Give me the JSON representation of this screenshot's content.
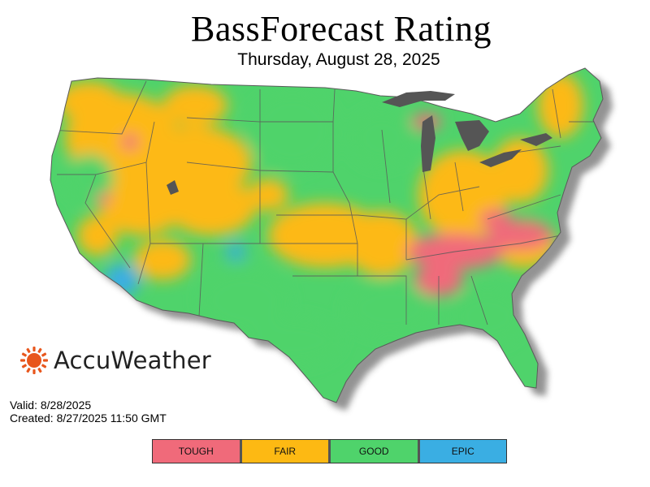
{
  "header": {
    "title": "BassForecast Rating",
    "date": "Thursday, August 28, 2025"
  },
  "brand": {
    "name": "AccuWeather",
    "logo_icon": "sun-icon",
    "accent_color": "#e8561c"
  },
  "meta": {
    "valid": "Valid: 8/28/2025",
    "created": "Created: 8/27/2025 11:50 GMT"
  },
  "legend": {
    "items": [
      {
        "label": "TOUGH",
        "color": "#f06a7a"
      },
      {
        "label": "FAIR",
        "color": "#fdb913"
      },
      {
        "label": "GOOD",
        "color": "#4fd36b"
      },
      {
        "label": "EPIC",
        "color": "#3aaee3"
      }
    ]
  },
  "map": {
    "region": "Contiguous United States",
    "great_lakes_color": "#555555"
  }
}
